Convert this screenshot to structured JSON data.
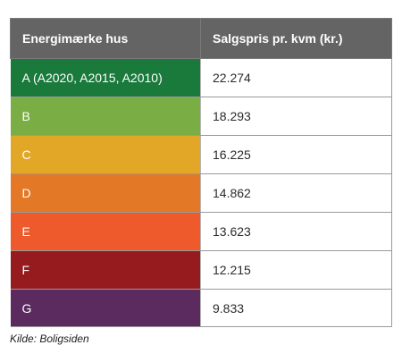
{
  "table": {
    "headers": [
      "Energimærke hus",
      "Salgspris pr. kvm (kr.)"
    ],
    "rows": [
      {
        "label": "A (A2020, A2015, A2010)",
        "value": "22.274",
        "color": "#1a7a3c"
      },
      {
        "label": "B",
        "value": "18.293",
        "color": "#7aae45"
      },
      {
        "label": "C",
        "value": "16.225",
        "color": "#e3a727"
      },
      {
        "label": "D",
        "value": "14.862",
        "color": "#e37826"
      },
      {
        "label": "E",
        "value": "13.623",
        "color": "#ee5a2c"
      },
      {
        "label": "F",
        "value": "12.215",
        "color": "#961b1f"
      },
      {
        "label": "G",
        "value": "9.833",
        "color": "#5b2b60"
      }
    ],
    "header_color": "#646464"
  },
  "source": "Kilde: Boligsiden"
}
